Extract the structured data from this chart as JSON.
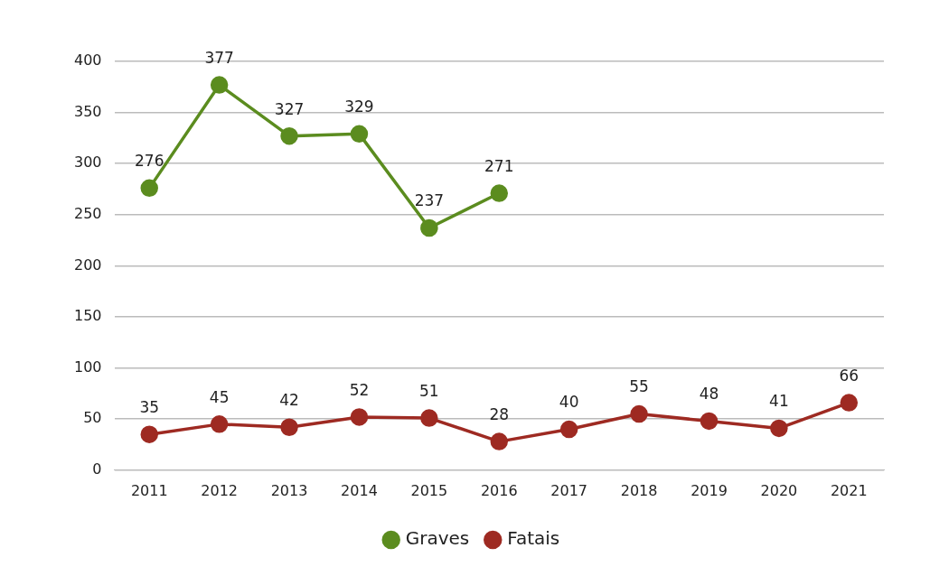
{
  "chart_data": {
    "type": "line",
    "categories": [
      "2011",
      "2012",
      "2013",
      "2014",
      "2015",
      "2016",
      "2017",
      "2018",
      "2019",
      "2020",
      "2021"
    ],
    "series": [
      {
        "name": "Graves",
        "color": "#5b8c1f",
        "values": [
          276,
          377,
          327,
          329,
          237,
          271,
          null,
          null,
          null,
          null,
          null
        ]
      },
      {
        "name": "Fatais",
        "color": "#9e2a22",
        "values": [
          35,
          45,
          42,
          52,
          51,
          28,
          40,
          55,
          48,
          41,
          66
        ]
      }
    ],
    "ylim": [
      0,
      400
    ],
    "yticks": [
      0,
      50,
      100,
      150,
      200,
      250,
      300,
      350,
      400
    ],
    "grid": "y",
    "legend": "bottom",
    "marker": "circle",
    "line_style": "solid",
    "data_labels": true
  }
}
